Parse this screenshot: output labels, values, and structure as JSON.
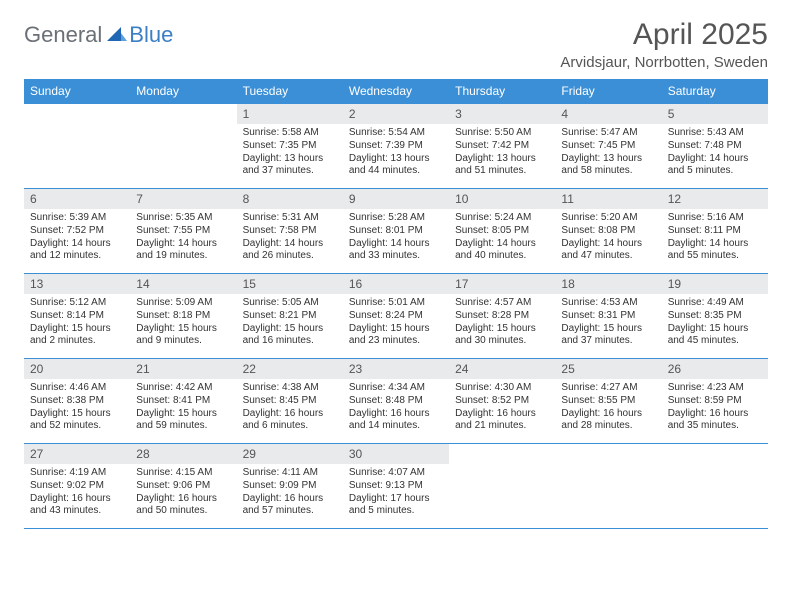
{
  "logo": {
    "part1": "General",
    "part2": "Blue"
  },
  "title": "April 2025",
  "location": "Arvidsjaur, Norrbotten, Sweden",
  "colors": {
    "header_bg": "#3b8fd6",
    "header_text": "#ffffff",
    "daynum_bg": "#e8eaec",
    "border": "#3b8fd6",
    "logo_gray": "#6a7076",
    "logo_blue": "#3b7fc4",
    "title_color": "#555555",
    "body_text": "#333333"
  },
  "weekdays": [
    "Sunday",
    "Monday",
    "Tuesday",
    "Wednesday",
    "Thursday",
    "Friday",
    "Saturday"
  ],
  "days": {
    "1": {
      "sunrise": "5:58 AM",
      "sunset": "7:35 PM",
      "daylight": "13 hours and 37 minutes."
    },
    "2": {
      "sunrise": "5:54 AM",
      "sunset": "7:39 PM",
      "daylight": "13 hours and 44 minutes."
    },
    "3": {
      "sunrise": "5:50 AM",
      "sunset": "7:42 PM",
      "daylight": "13 hours and 51 minutes."
    },
    "4": {
      "sunrise": "5:47 AM",
      "sunset": "7:45 PM",
      "daylight": "13 hours and 58 minutes."
    },
    "5": {
      "sunrise": "5:43 AM",
      "sunset": "7:48 PM",
      "daylight": "14 hours and 5 minutes."
    },
    "6": {
      "sunrise": "5:39 AM",
      "sunset": "7:52 PM",
      "daylight": "14 hours and 12 minutes."
    },
    "7": {
      "sunrise": "5:35 AM",
      "sunset": "7:55 PM",
      "daylight": "14 hours and 19 minutes."
    },
    "8": {
      "sunrise": "5:31 AM",
      "sunset": "7:58 PM",
      "daylight": "14 hours and 26 minutes."
    },
    "9": {
      "sunrise": "5:28 AM",
      "sunset": "8:01 PM",
      "daylight": "14 hours and 33 minutes."
    },
    "10": {
      "sunrise": "5:24 AM",
      "sunset": "8:05 PM",
      "daylight": "14 hours and 40 minutes."
    },
    "11": {
      "sunrise": "5:20 AM",
      "sunset": "8:08 PM",
      "daylight": "14 hours and 47 minutes."
    },
    "12": {
      "sunrise": "5:16 AM",
      "sunset": "8:11 PM",
      "daylight": "14 hours and 55 minutes."
    },
    "13": {
      "sunrise": "5:12 AM",
      "sunset": "8:14 PM",
      "daylight": "15 hours and 2 minutes."
    },
    "14": {
      "sunrise": "5:09 AM",
      "sunset": "8:18 PM",
      "daylight": "15 hours and 9 minutes."
    },
    "15": {
      "sunrise": "5:05 AM",
      "sunset": "8:21 PM",
      "daylight": "15 hours and 16 minutes."
    },
    "16": {
      "sunrise": "5:01 AM",
      "sunset": "8:24 PM",
      "daylight": "15 hours and 23 minutes."
    },
    "17": {
      "sunrise": "4:57 AM",
      "sunset": "8:28 PM",
      "daylight": "15 hours and 30 minutes."
    },
    "18": {
      "sunrise": "4:53 AM",
      "sunset": "8:31 PM",
      "daylight": "15 hours and 37 minutes."
    },
    "19": {
      "sunrise": "4:49 AM",
      "sunset": "8:35 PM",
      "daylight": "15 hours and 45 minutes."
    },
    "20": {
      "sunrise": "4:46 AM",
      "sunset": "8:38 PM",
      "daylight": "15 hours and 52 minutes."
    },
    "21": {
      "sunrise": "4:42 AM",
      "sunset": "8:41 PM",
      "daylight": "15 hours and 59 minutes."
    },
    "22": {
      "sunrise": "4:38 AM",
      "sunset": "8:45 PM",
      "daylight": "16 hours and 6 minutes."
    },
    "23": {
      "sunrise": "4:34 AM",
      "sunset": "8:48 PM",
      "daylight": "16 hours and 14 minutes."
    },
    "24": {
      "sunrise": "4:30 AM",
      "sunset": "8:52 PM",
      "daylight": "16 hours and 21 minutes."
    },
    "25": {
      "sunrise": "4:27 AM",
      "sunset": "8:55 PM",
      "daylight": "16 hours and 28 minutes."
    },
    "26": {
      "sunrise": "4:23 AM",
      "sunset": "8:59 PM",
      "daylight": "16 hours and 35 minutes."
    },
    "27": {
      "sunrise": "4:19 AM",
      "sunset": "9:02 PM",
      "daylight": "16 hours and 43 minutes."
    },
    "28": {
      "sunrise": "4:15 AM",
      "sunset": "9:06 PM",
      "daylight": "16 hours and 50 minutes."
    },
    "29": {
      "sunrise": "4:11 AM",
      "sunset": "9:09 PM",
      "daylight": "16 hours and 57 minutes."
    },
    "30": {
      "sunrise": "4:07 AM",
      "sunset": "9:13 PM",
      "daylight": "17 hours and 5 minutes."
    }
  },
  "labels": {
    "sunrise": "Sunrise:",
    "sunset": "Sunset:",
    "daylight": "Daylight:"
  },
  "layout": {
    "first_weekday_index": 2,
    "num_days": 30
  }
}
